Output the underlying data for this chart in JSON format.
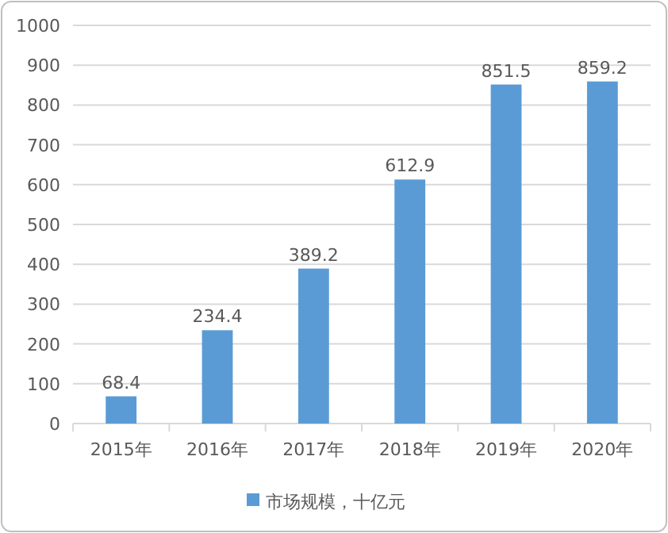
{
  "chart_data": {
    "type": "bar",
    "categories": [
      "2015年",
      "2016年",
      "2017年",
      "2018年",
      "2019年",
      "2020年"
    ],
    "series": [
      {
        "name": "市场规模，十亿元",
        "color": "#5b9bd5",
        "values": [
          68.4,
          234.4,
          389.2,
          612.9,
          851.5,
          859.2
        ]
      }
    ],
    "ylim": [
      0,
      1000
    ],
    "yticks": [
      0,
      100,
      200,
      300,
      400,
      500,
      600,
      700,
      800,
      900,
      1000
    ],
    "grid": "y",
    "data_labels": true,
    "legend": "bottom"
  }
}
